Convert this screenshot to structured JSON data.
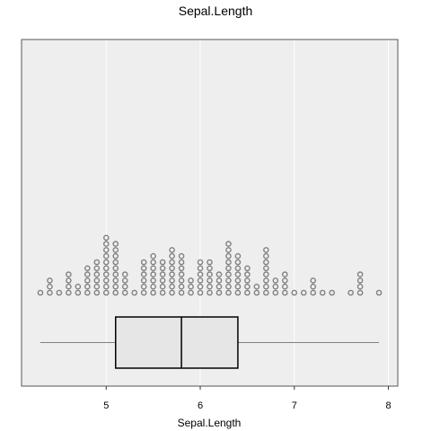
{
  "chart_data": {
    "type": "dotplot-boxplot",
    "title": "Sepal.Length",
    "xlabel": "Sepal.Length",
    "ylabel": "",
    "xlim": [
      4.1,
      8.1
    ],
    "x_ticks": [
      5,
      6,
      7,
      8
    ],
    "x_tick_labels": [
      "5",
      "6",
      "7",
      "8"
    ],
    "grid": true,
    "dot_counts": [
      {
        "x": 4.3,
        "n": 1
      },
      {
        "x": 4.4,
        "n": 3
      },
      {
        "x": 4.5,
        "n": 1
      },
      {
        "x": 4.6,
        "n": 4
      },
      {
        "x": 4.7,
        "n": 2
      },
      {
        "x": 4.8,
        "n": 5
      },
      {
        "x": 4.9,
        "n": 6
      },
      {
        "x": 5.0,
        "n": 10
      },
      {
        "x": 5.1,
        "n": 9
      },
      {
        "x": 5.2,
        "n": 4
      },
      {
        "x": 5.3,
        "n": 1
      },
      {
        "x": 5.4,
        "n": 6
      },
      {
        "x": 5.5,
        "n": 7
      },
      {
        "x": 5.6,
        "n": 6
      },
      {
        "x": 5.7,
        "n": 8
      },
      {
        "x": 5.8,
        "n": 7
      },
      {
        "x": 5.9,
        "n": 3
      },
      {
        "x": 6.0,
        "n": 6
      },
      {
        "x": 6.1,
        "n": 6
      },
      {
        "x": 6.2,
        "n": 4
      },
      {
        "x": 6.3,
        "n": 9
      },
      {
        "x": 6.4,
        "n": 7
      },
      {
        "x": 6.5,
        "n": 5
      },
      {
        "x": 6.6,
        "n": 2
      },
      {
        "x": 6.7,
        "n": 8
      },
      {
        "x": 6.8,
        "n": 3
      },
      {
        "x": 6.9,
        "n": 4
      },
      {
        "x": 7.0,
        "n": 1
      },
      {
        "x": 7.1,
        "n": 1
      },
      {
        "x": 7.2,
        "n": 3
      },
      {
        "x": 7.3,
        "n": 1
      },
      {
        "x": 7.4,
        "n": 1
      },
      {
        "x": 7.6,
        "n": 1
      },
      {
        "x": 7.7,
        "n": 4
      },
      {
        "x": 7.9,
        "n": 1
      }
    ],
    "boxplot": {
      "min": 4.3,
      "q1": 5.1,
      "median": 5.8,
      "q3": 6.4,
      "max": 7.9
    },
    "colors": {
      "panel_background": "#eeeeee",
      "grid": "#ffffff",
      "dot_stroke": "#808080",
      "box_fill": "#e6e6e6",
      "box_stroke": "#000000",
      "whisker": "#808080"
    }
  }
}
